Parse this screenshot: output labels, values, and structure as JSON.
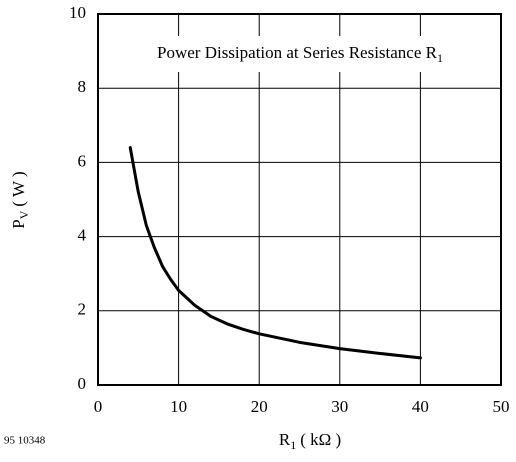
{
  "chart_data": {
    "type": "line",
    "title_main": "Power Dissipation at Series Resistance R",
    "title_subscript": "1",
    "y_label_main": "P",
    "y_label_subscript": "V",
    "y_label_unit": "( W )",
    "x_label_main": "R",
    "x_label_subscript": "1",
    "x_label_unit": "( kΩ )",
    "footnote": "95 10348",
    "x": [
      4,
      5,
      6,
      7,
      8,
      9,
      10,
      12,
      14,
      16,
      18,
      20,
      25,
      30,
      35,
      40
    ],
    "series": [
      {
        "color": "#000000",
        "values": [
          6.4,
          5.2,
          4.3,
          3.7,
          3.2,
          2.85,
          2.55,
          2.15,
          1.85,
          1.65,
          1.5,
          1.38,
          1.15,
          0.98,
          0.85,
          0.73
        ]
      }
    ],
    "xlim": [
      0,
      50
    ],
    "ylim": [
      0,
      10
    ],
    "xticks": [
      0,
      10,
      20,
      30,
      40,
      50
    ],
    "yticks": [
      0,
      2,
      4,
      6,
      8,
      10
    ],
    "grid": true
  }
}
